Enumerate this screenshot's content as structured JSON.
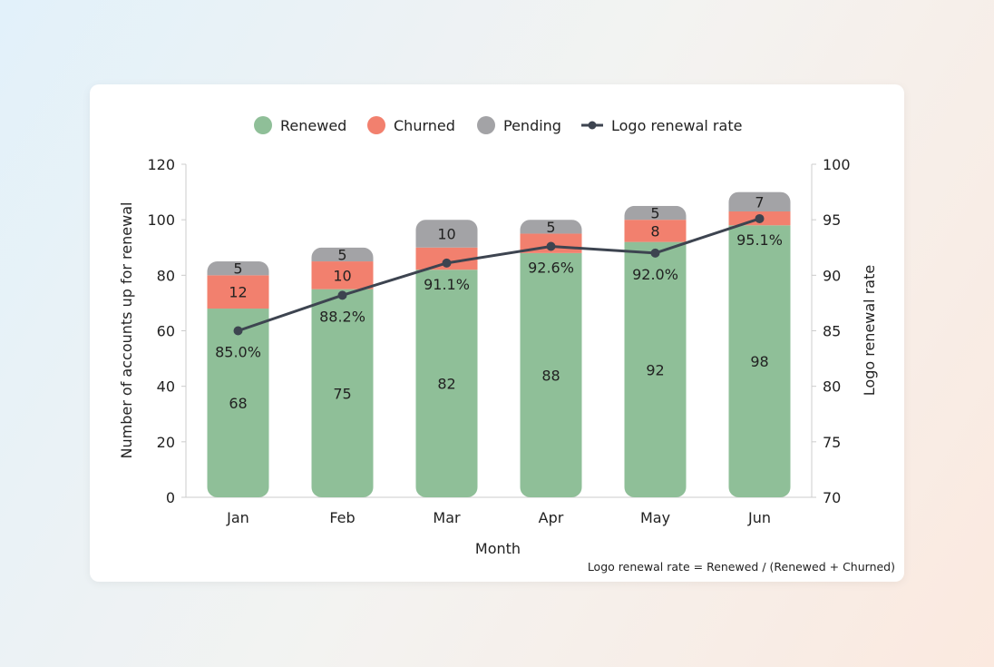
{
  "chart_data": {
    "type": "bar",
    "stacked": true,
    "categories": [
      "Jan",
      "Feb",
      "Mar",
      "Apr",
      "May",
      "Jun"
    ],
    "series": [
      {
        "name": "Renewed",
        "values": [
          68,
          75,
          82,
          88,
          92,
          98
        ],
        "color": "#8fbf98",
        "labels_shown": [
          true,
          true,
          true,
          true,
          true,
          true
        ]
      },
      {
        "name": "Churned",
        "values": [
          12,
          10,
          8,
          7,
          8,
          5
        ],
        "color": "#f2806e",
        "labels_shown": [
          true,
          true,
          false,
          false,
          true,
          false
        ]
      },
      {
        "name": "Pending",
        "values": [
          5,
          5,
          10,
          5,
          5,
          7
        ],
        "color": "#a3a3a6",
        "labels_shown": [
          true,
          true,
          true,
          true,
          true,
          true
        ]
      }
    ],
    "line_series": {
      "name": "Logo renewal rate",
      "values": [
        85.0,
        88.2,
        91.1,
        92.6,
        92.0,
        95.1
      ],
      "labels": [
        "85.0%",
        "88.2%",
        "91.1%",
        "92.6%",
        "92.0%",
        "95.1%"
      ],
      "color": "#3d4450",
      "axis": "right"
    },
    "xlabel": "Month",
    "ylabel": "Number of accounts up for renewal",
    "y2label": "Logo renewal rate",
    "ylim": [
      0,
      120
    ],
    "yticks": [
      0,
      20,
      40,
      60,
      80,
      100,
      120
    ],
    "y2lim": [
      70,
      100
    ],
    "y2ticks": [
      70,
      75,
      80,
      85,
      90,
      95,
      100
    ],
    "grid": false,
    "legend": "top-center",
    "footnote": "Logo renewal rate = Renewed / (Renewed + Churned)"
  }
}
